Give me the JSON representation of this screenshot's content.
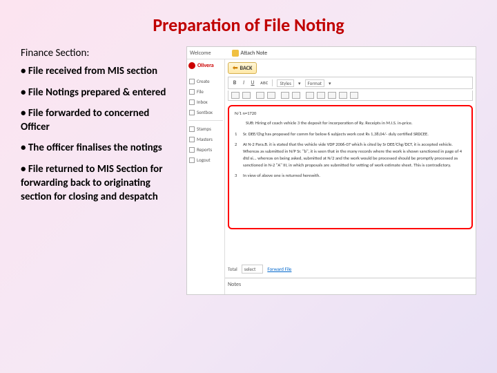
{
  "title": "Preparation of File Noting",
  "section_head": "Finance Section:",
  "bullets": [
    "File received from MIS section",
    "File Notings  prepared & entered",
    "File forwarded to concerned Officer",
    "The officer finalises the notings",
    "File returned to MIS Section for forwarding back to originating section for closing and despatch"
  ],
  "colors": {
    "title": "#c00000",
    "bg_start": "#fce4f0",
    "bg_end": "#e8e0f5",
    "note_border": "#ff0000",
    "back_btn_grad_top": "#fff6d8",
    "back_btn_grad_bot": "#ffe9a8"
  },
  "screenshot": {
    "top": {
      "welcome": "Welcome",
      "attach_label": "Attach Note"
    },
    "sidebar": {
      "user": "Olivera",
      "items_top": [
        "Create",
        "File",
        "Inbox",
        "Sentbox"
      ],
      "items_bottom": [
        "Stamps",
        "Masters",
        "Reports",
        "Logout"
      ]
    },
    "main": {
      "back": "BACK",
      "toolbar1": {
        "b": "B",
        "i": "I",
        "u": "U",
        "styles_dd": "Styles",
        "format_dd": "Format"
      },
      "note": {
        "nh": "N/1          n=1720",
        "sub_label": "SUB:",
        "sub_text": "Hiring of coach vehicle 3 the deposit for incorporation of Ry. Receipts in M.I.S. in-price.",
        "point1_num": "1",
        "point1": "Sr. DEE/Chg has proposed for comm for below 6 subjects work cost Rs 1,38,04/- duly certified SRDCEE.",
        "point2_num": "2",
        "point2": "At N-2 Para.B. it is stated that the vehicle vide VDP 2006-07 which is cited by Sr DEE/Chg/DCT, it is accepted vehicle. Whereas as submitted in N/P Sr. \"b\", it is seen that in the many records where the work is shown sanctioned in page of 4 dtd xi... whereas on being asked, submitted at N/2 and the work would be processed should be promptly processed as sanctioned in N-2 \"A\" III, in which proposals are submitted for vetting of work estimate sheet. This is contradictory.",
        "point3_num": "3",
        "point3": "In view of above one is returned herewith."
      },
      "bottom": {
        "total_label": "Total",
        "select_val": "select",
        "forward_link": "Forward File"
      },
      "notes_footer": "Notes"
    }
  }
}
